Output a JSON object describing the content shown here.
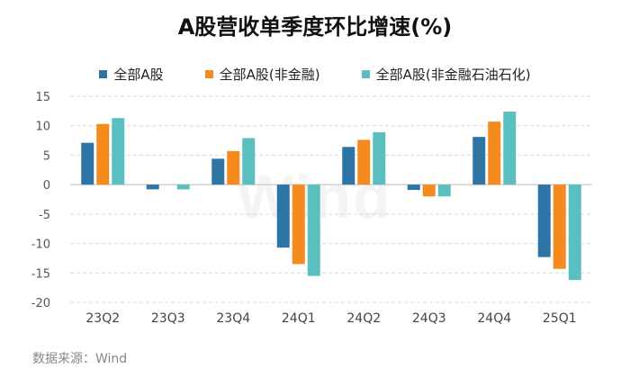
{
  "chart_data": {
    "type": "bar",
    "title": "A股营收单季度环比增速(%)",
    "categories": [
      "23Q2",
      "23Q3",
      "23Q4",
      "24Q1",
      "24Q2",
      "24Q3",
      "24Q4",
      "25Q1"
    ],
    "series": [
      {
        "name": "全部A股",
        "color": "#2E75A6",
        "values": [
          7.1,
          -0.8,
          4.4,
          -10.7,
          6.4,
          -0.9,
          8.1,
          -12.3
        ]
      },
      {
        "name": "全部A股(非金融)",
        "color": "#F58A1F",
        "values": [
          10.3,
          0.0,
          5.7,
          -13.5,
          7.6,
          -2.0,
          10.7,
          -14.3
        ]
      },
      {
        "name": "全部A股(非金融石油石化)",
        "color": "#5BBFBF",
        "values": [
          11.3,
          -0.8,
          7.9,
          -15.5,
          8.9,
          -2.0,
          12.4,
          -16.2
        ]
      }
    ],
    "ylim": [
      -20,
      15
    ],
    "yticks": [
      15,
      10,
      5,
      0,
      -5,
      -10,
      -15,
      -20
    ],
    "xlabel": "",
    "ylabel": "",
    "grid": true,
    "legend_position": "top"
  },
  "source": "数据来源：Wind",
  "watermark": "Wind"
}
